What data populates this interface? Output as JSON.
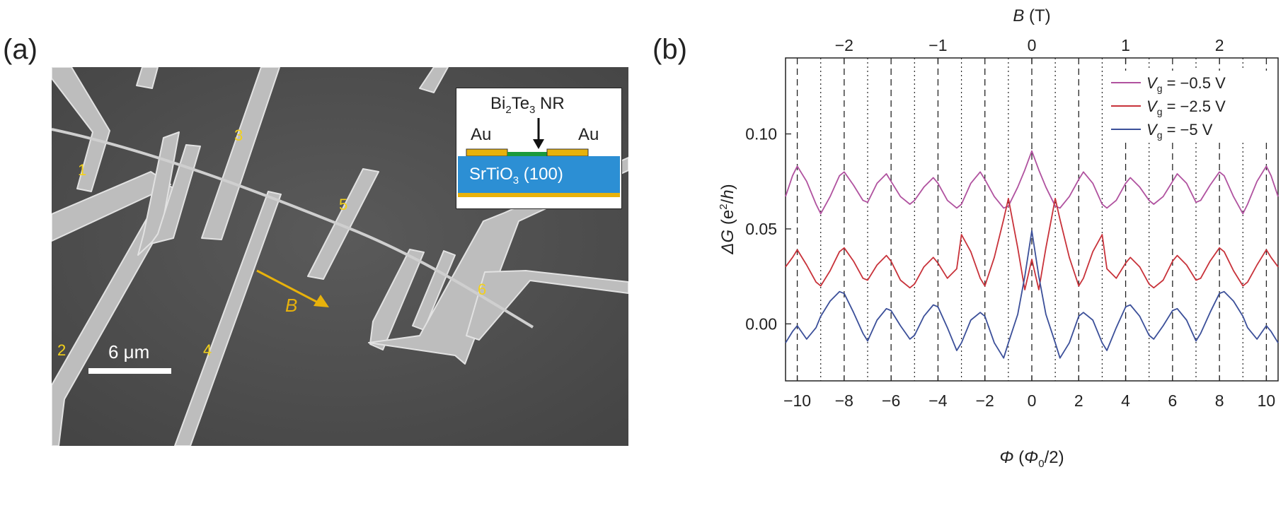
{
  "panel_a": {
    "label": "(a)",
    "electrode_labels": [
      "1",
      "2",
      "3",
      "4",
      "5",
      "6"
    ],
    "inset": {
      "nr_label_parts": [
        "Bi",
        "2",
        "Te",
        "3",
        " NR"
      ],
      "au_left": "Au",
      "au_right": "Au",
      "substrate_parts": [
        "SrTiO",
        "3",
        " (100)"
      ]
    },
    "scale_bar": "6 μm",
    "field_arrow_label": "B",
    "colors": {
      "electrode_label": "#f3d11a",
      "gold": "#e8b20b",
      "substrate": "#2c8fd4",
      "nanoribbon": "#1b9a3c"
    }
  },
  "panel_b": {
    "label": "(b)",
    "chart_data": {
      "type": "line",
      "title": "",
      "xlabel_parts": [
        "Φ",
        " (",
        "Φ",
        "0",
        "/2)"
      ],
      "ylabel_parts": [
        "ΔG",
        " (e",
        "2",
        "/",
        "h",
        ")"
      ],
      "top_xlabel_parts": [
        "B",
        " (T)"
      ],
      "xlim": [
        -10.5,
        10.5
      ],
      "ylim": [
        -0.03,
        0.14
      ],
      "x_ticks": [
        -10,
        -8,
        -6,
        -4,
        -2,
        0,
        2,
        4,
        6,
        8,
        10
      ],
      "x_tick_labels": [
        "−10",
        "−8",
        "−6",
        "−4",
        "−2",
        "0",
        "2",
        "4",
        "6",
        "8",
        "10"
      ],
      "y_ticks": [
        0.0,
        0.05,
        0.1
      ],
      "y_tick_labels": [
        "0.00",
        "0.05",
        "0.10"
      ],
      "top_ticks_B": [
        -2,
        -1,
        0,
        1,
        2
      ],
      "top_tick_labels": [
        "−2",
        "−1",
        "0",
        "1",
        "2"
      ],
      "phi_per_tesla": 4.0,
      "dashed_lines_x": [
        -10,
        -8,
        -6,
        -4,
        -2,
        0,
        2,
        4,
        6,
        8,
        10
      ],
      "dotted_lines_x": [
        -9,
        -7,
        -5,
        -3,
        -1,
        1,
        3,
        5,
        7,
        9
      ],
      "legend_position": "top-right",
      "series": [
        {
          "name": "V_g = −0.5 V",
          "legend_parts": [
            "V",
            "g",
            " = −0.5 V"
          ],
          "color": "#b0529f",
          "x": [
            -10.5,
            -10.2,
            -10,
            -9.6,
            -9.2,
            -9,
            -8.6,
            -8.2,
            -8,
            -7.6,
            -7.2,
            -7,
            -6.6,
            -6.2,
            -6,
            -5.6,
            -5.2,
            -5,
            -4.6,
            -4.2,
            -4,
            -3.6,
            -3.2,
            -3,
            -2.6,
            -2.2,
            -2,
            -1.6,
            -1.2,
            -1,
            -0.6,
            -0.3,
            0,
            0.3,
            0.6,
            1,
            1.2,
            1.6,
            2,
            2.2,
            2.6,
            3,
            3.2,
            3.6,
            4,
            4.2,
            4.6,
            5,
            5.2,
            5.6,
            6,
            6.2,
            6.6,
            7,
            7.2,
            7.6,
            8,
            8.2,
            8.6,
            9,
            9.2,
            9.6,
            10,
            10.2,
            10.5
          ],
          "values": [
            0.067,
            0.078,
            0.083,
            0.075,
            0.063,
            0.058,
            0.067,
            0.078,
            0.08,
            0.073,
            0.065,
            0.064,
            0.074,
            0.079,
            0.075,
            0.067,
            0.063,
            0.065,
            0.072,
            0.077,
            0.074,
            0.065,
            0.061,
            0.063,
            0.074,
            0.08,
            0.076,
            0.067,
            0.061,
            0.062,
            0.072,
            0.081,
            0.091,
            0.081,
            0.072,
            0.062,
            0.061,
            0.067,
            0.076,
            0.08,
            0.074,
            0.063,
            0.061,
            0.065,
            0.074,
            0.077,
            0.072,
            0.065,
            0.063,
            0.067,
            0.075,
            0.079,
            0.074,
            0.064,
            0.065,
            0.073,
            0.08,
            0.078,
            0.067,
            0.058,
            0.063,
            0.075,
            0.083,
            0.078,
            0.067
          ]
        },
        {
          "name": "V_g = −2.5 V",
          "legend_parts": [
            "V",
            "g",
            " = −2.5 V"
          ],
          "color": "#c8323a",
          "x": [
            -10.5,
            -10.2,
            -10,
            -9.6,
            -9.2,
            -9,
            -8.6,
            -8.2,
            -8,
            -7.6,
            -7.2,
            -7,
            -6.6,
            -6.2,
            -6,
            -5.6,
            -5.2,
            -5,
            -4.6,
            -4.2,
            -4,
            -3.6,
            -3.2,
            -3,
            -2.6,
            -2.2,
            -2,
            -1.6,
            -1.2,
            -1,
            -0.6,
            -0.3,
            0,
            0.3,
            0.6,
            1,
            1.2,
            1.6,
            2,
            2.2,
            2.6,
            3,
            3.2,
            3.6,
            4,
            4.2,
            4.6,
            5,
            5.2,
            5.6,
            6,
            6.2,
            6.6,
            7,
            7.2,
            7.6,
            8,
            8.2,
            8.6,
            9,
            9.2,
            9.6,
            10,
            10.2,
            10.5
          ],
          "values": [
            0.03,
            0.035,
            0.039,
            0.031,
            0.022,
            0.02,
            0.028,
            0.038,
            0.04,
            0.033,
            0.024,
            0.023,
            0.031,
            0.036,
            0.033,
            0.023,
            0.019,
            0.021,
            0.03,
            0.035,
            0.032,
            0.024,
            0.029,
            0.047,
            0.038,
            0.024,
            0.02,
            0.035,
            0.055,
            0.066,
            0.04,
            0.018,
            0.034,
            0.018,
            0.04,
            0.066,
            0.055,
            0.035,
            0.02,
            0.024,
            0.038,
            0.047,
            0.029,
            0.024,
            0.032,
            0.035,
            0.03,
            0.021,
            0.019,
            0.023,
            0.033,
            0.036,
            0.031,
            0.023,
            0.024,
            0.033,
            0.04,
            0.038,
            0.028,
            0.02,
            0.022,
            0.031,
            0.039,
            0.035,
            0.03
          ]
        },
        {
          "name": "V_g = −5 V",
          "legend_parts": [
            "V",
            "g",
            " = −5 V"
          ],
          "color": "#3b4f99",
          "x": [
            -10.5,
            -10.2,
            -10,
            -9.6,
            -9.2,
            -9,
            -8.6,
            -8.2,
            -8,
            -7.6,
            -7.2,
            -7,
            -6.6,
            -6.2,
            -6,
            -5.6,
            -5.2,
            -5,
            -4.6,
            -4.2,
            -4,
            -3.6,
            -3.2,
            -3,
            -2.6,
            -2.2,
            -2,
            -1.6,
            -1.2,
            -1,
            -0.6,
            -0.3,
            0,
            0.3,
            0.6,
            1,
            1.2,
            1.6,
            2,
            2.2,
            2.6,
            3,
            3.2,
            3.6,
            4,
            4.2,
            4.6,
            5,
            5.2,
            5.6,
            6,
            6.2,
            6.6,
            7,
            7.2,
            7.6,
            8,
            8.2,
            8.6,
            9,
            9.2,
            9.6,
            10,
            10.2,
            10.5
          ],
          "values": [
            -0.01,
            -0.004,
            -0.001,
            -0.008,
            -0.002,
            0.004,
            0.012,
            0.017,
            0.016,
            0.006,
            -0.005,
            -0.009,
            0.002,
            0.008,
            0.007,
            -0.001,
            -0.008,
            -0.006,
            0.004,
            0.01,
            0.009,
            -0.002,
            -0.014,
            -0.01,
            0.002,
            0.006,
            0.004,
            -0.01,
            -0.018,
            -0.01,
            0.005,
            0.025,
            0.049,
            0.025,
            0.005,
            -0.01,
            -0.018,
            -0.01,
            0.004,
            0.006,
            0.002,
            -0.01,
            -0.014,
            -0.002,
            0.009,
            0.01,
            0.004,
            -0.006,
            -0.008,
            -0.001,
            0.007,
            0.008,
            0.002,
            -0.009,
            -0.005,
            0.006,
            0.016,
            0.017,
            0.012,
            0.004,
            -0.002,
            -0.008,
            -0.001,
            -0.004,
            -0.01
          ]
        }
      ]
    }
  }
}
